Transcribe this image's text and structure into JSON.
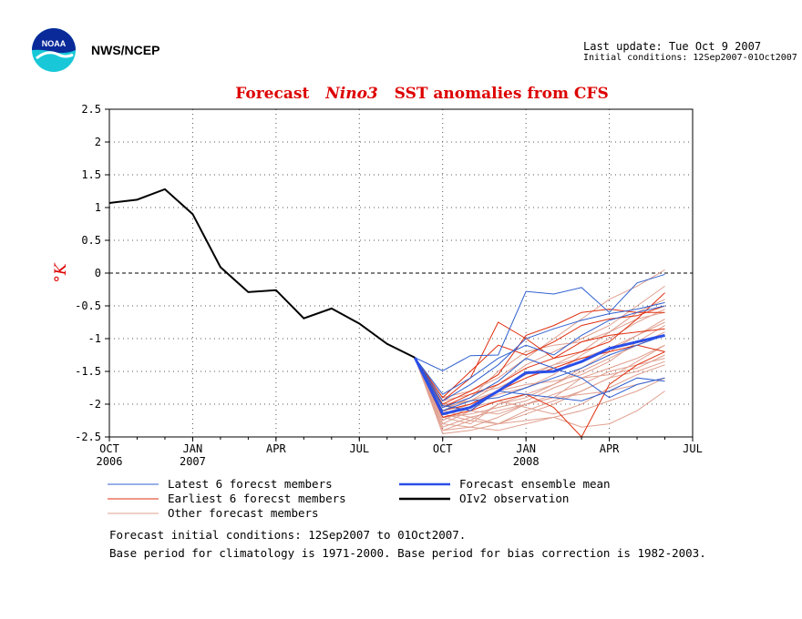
{
  "header": {
    "agency": "NWS/NCEP",
    "last_update": "Last update: Tue Oct 9 2007",
    "initial_conditions": "Initial conditions: 12Sep2007-01Oct2007"
  },
  "logo": {
    "text": "NOAA"
  },
  "colors": {
    "latest": "#3060d0",
    "earliest": "#e03010",
    "other": "#e0a090",
    "mean": "#2a4ee8",
    "obs": "#000000",
    "title": "#dd0000"
  },
  "chart_data": {
    "type": "line",
    "title_parts": [
      "Forecast",
      "Nino3",
      "SST anomalies from CFS"
    ],
    "ylabel": "°K",
    "ylim": [
      -2.5,
      2.5
    ],
    "yticks": [
      "2.5",
      "2",
      "1.5",
      "1",
      "0.5",
      "0",
      "-0.5",
      "-1",
      "-1.5",
      "-2",
      "-2.5"
    ],
    "xticks": [
      {
        "label": "OCT",
        "sub": "2006"
      },
      {
        "label": "JAN",
        "sub": "2007"
      },
      {
        "label": "APR",
        "sub": ""
      },
      {
        "label": "JUL",
        "sub": ""
      },
      {
        "label": "OCT",
        "sub": ""
      },
      {
        "label": "JAN",
        "sub": "2008"
      },
      {
        "label": "APR",
        "sub": ""
      },
      {
        "label": "JUL",
        "sub": ""
      }
    ],
    "x_range_months": [
      "2006-10",
      "2008-07"
    ],
    "grid": true,
    "observation": {
      "name": "OIv2 observation",
      "x": [
        "2006-10",
        "2006-11",
        "2006-12",
        "2007-01",
        "2007-02",
        "2007-03",
        "2007-04",
        "2007-05",
        "2007-06",
        "2007-07",
        "2007-08",
        "2007-09"
      ],
      "y": [
        1.07,
        1.12,
        1.28,
        0.9,
        0.09,
        -0.29,
        -0.26,
        -0.69,
        -0.54,
        -0.77,
        -1.08,
        -1.29
      ]
    },
    "forecast_x": [
      "2007-09",
      "2007-10",
      "2007-11",
      "2007-12",
      "2008-01",
      "2008-02",
      "2008-03",
      "2008-04",
      "2008-05",
      "2008-06"
    ],
    "ensemble_mean": {
      "name": "Forecast ensemble mean",
      "y": [
        -1.29,
        -2.15,
        -2.05,
        -1.8,
        -1.52,
        -1.5,
        -1.35,
        -1.15,
        -1.05,
        -0.95
      ]
    },
    "latest_members": [
      [
        -1.29,
        -1.49,
        -1.26,
        -1.25,
        -0.28,
        -0.32,
        -0.22,
        -0.6,
        -0.15,
        -0.02
      ],
      [
        -1.29,
        -1.95,
        -1.7,
        -1.4,
        -1.0,
        -0.85,
        -0.72,
        -0.62,
        -0.55,
        -0.45
      ],
      [
        -1.29,
        -2.02,
        -2.1,
        -1.8,
        -1.85,
        -1.9,
        -1.95,
        -1.8,
        -1.6,
        -1.65
      ],
      [
        -1.29,
        -2.05,
        -1.9,
        -1.65,
        -1.3,
        -1.45,
        -1.6,
        -1.9,
        -1.7,
        -1.6
      ],
      [
        -1.29,
        -1.85,
        -1.6,
        -1.3,
        -1.1,
        -1.25,
        -0.95,
        -0.72,
        -0.6,
        -0.5
      ],
      [
        -1.29,
        -2.1,
        -1.95,
        -1.9,
        -1.75,
        -1.6,
        -1.45,
        -1.25,
        -1.1,
        -0.95
      ]
    ],
    "earliest_members": [
      [
        -1.29,
        -1.95,
        -1.6,
        -0.75,
        -1.0,
        -1.3,
        -1.2,
        -1.05,
        -0.7,
        -0.3
      ],
      [
        -1.29,
        -2.0,
        -1.8,
        -1.55,
        -0.95,
        -0.8,
        -0.6,
        -0.55,
        -0.6,
        -0.6
      ],
      [
        -1.29,
        -2.05,
        -1.85,
        -1.7,
        -1.45,
        -1.3,
        -1.05,
        -0.95,
        -0.9,
        -0.85
      ],
      [
        -1.29,
        -2.1,
        -2.0,
        -1.8,
        -1.6,
        -1.45,
        -1.3,
        -1.2,
        -1.1,
        -1.2
      ],
      [
        -1.29,
        -2.2,
        -2.1,
        -1.95,
        -1.85,
        -2.05,
        -2.55,
        -1.7,
        -1.4,
        -1.2
      ],
      [
        -1.29,
        -1.9,
        -1.5,
        -1.1,
        -1.25,
        -1.05,
        -0.8,
        -0.7,
        -0.65,
        -0.5
      ]
    ],
    "other_members": [
      [
        -1.29,
        -2.2,
        -2.3,
        -2.0,
        -1.9,
        -1.7,
        -1.5,
        -1.3,
        -1.1,
        -0.9
      ],
      [
        -1.29,
        -2.3,
        -2.1,
        -1.8,
        -1.6,
        -1.4,
        -1.2,
        -0.9,
        -0.6,
        -0.4
      ],
      [
        -1.29,
        -2.4,
        -2.35,
        -2.2,
        -2.0,
        -1.85,
        -1.7,
        -1.5,
        -1.4,
        -1.3
      ],
      [
        -1.29,
        -2.0,
        -1.95,
        -1.7,
        -1.4,
        -1.2,
        -1.0,
        -0.8,
        -0.5,
        -0.2
      ],
      [
        -1.29,
        -2.1,
        -2.2,
        -2.3,
        -2.15,
        -2.0,
        -1.8,
        -1.6,
        -1.35,
        -1.1
      ],
      [
        -1.29,
        -2.45,
        -2.4,
        -2.3,
        -2.25,
        -2.2,
        -2.1,
        -1.95,
        -1.8,
        -1.6
      ],
      [
        -1.29,
        -2.15,
        -2.0,
        -1.85,
        -1.75,
        -1.55,
        -1.25,
        -1.0,
        -0.75,
        -0.55
      ],
      [
        -1.29,
        -2.25,
        -2.05,
        -1.95,
        -2.05,
        -2.15,
        -2.0,
        -1.75,
        -1.55,
        -1.4
      ],
      [
        -1.29,
        -1.9,
        -1.8,
        -1.6,
        -1.3,
        -1.0,
        -0.7,
        -0.4,
        -0.2,
        0.05
      ],
      [
        -1.29,
        -2.35,
        -2.2,
        -2.1,
        -2.0,
        -1.9,
        -1.85,
        -1.8,
        -1.7,
        -1.6
      ],
      [
        -1.29,
        -2.0,
        -2.1,
        -2.15,
        -2.0,
        -1.9,
        -1.6,
        -1.45,
        -1.3,
        -1.1
      ],
      [
        -1.29,
        -2.05,
        -1.95,
        -1.8,
        -1.7,
        -1.65,
        -1.55,
        -1.35,
        -1.05,
        -0.8
      ],
      [
        -1.29,
        -2.3,
        -2.35,
        -2.4,
        -2.3,
        -2.2,
        -2.35,
        -2.3,
        -2.1,
        -1.8
      ],
      [
        -1.29,
        -2.1,
        -1.9,
        -1.5,
        -1.2,
        -1.1,
        -1.05,
        -0.9,
        -0.7,
        -0.6
      ],
      [
        -1.29,
        -2.2,
        -2.15,
        -2.05,
        -1.95,
        -1.75,
        -1.6,
        -1.55,
        -1.45,
        -1.25
      ],
      [
        -1.29,
        -2.4,
        -2.25,
        -2.0,
        -1.85,
        -1.7,
        -1.45,
        -1.2,
        -0.95,
        -0.7
      ],
      [
        -1.29,
        -2.15,
        -2.25,
        -2.3,
        -2.1,
        -1.95,
        -1.8,
        -1.6,
        -1.5,
        -1.35
      ],
      [
        -1.29,
        -1.95,
        -1.85,
        -1.75,
        -1.55,
        -1.4,
        -1.3,
        -1.15,
        -0.95,
        -0.75
      ]
    ],
    "legend": [
      {
        "label": "Latest 6 forecst members",
        "key": "latest"
      },
      {
        "label": "Forecast ensemble mean",
        "key": "mean"
      },
      {
        "label": "Earliest 6 forecst members",
        "key": "earliest"
      },
      {
        "label": "OIv2 observation",
        "key": "obs"
      },
      {
        "label": "Other forecast members",
        "key": "other"
      }
    ]
  },
  "notes": [
    "Forecast initial conditions: 12Sep2007 to 01Oct2007.",
    "Base period for climatology is 1971-2000. Base period for bias correction is 1982-2003."
  ]
}
